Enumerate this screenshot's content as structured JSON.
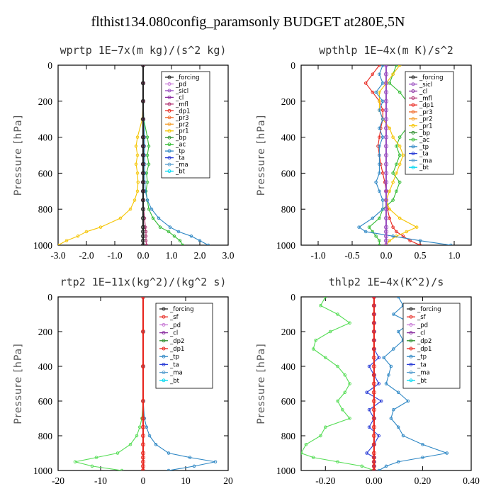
{
  "title": "flthist134.080config_paramsonly  BUDGET at280E,5N",
  "chart_data": [
    {
      "type": "line",
      "title": "wprtp  1E−7x(m kg)/(s^2 kg)",
      "ylabel": "Pressure [hPa]",
      "xlim": [
        -3.0,
        3.0
      ],
      "ylim": [
        1000,
        0
      ],
      "xticks": [
        -3.0,
        -2.0,
        -1.0,
        0.0,
        1.0,
        2.0,
        3.0
      ],
      "xtick_labels": [
        "-3.0",
        "-2.0",
        "-1.0",
        "0.0",
        "1.0",
        "2.0",
        "3.0"
      ],
      "yticks": [
        0,
        200,
        400,
        600,
        800,
        1000
      ],
      "ytick_labels": [
        "0",
        "200",
        "400",
        "600",
        "800",
        "1000"
      ],
      "pressure": [
        0,
        100,
        200,
        300,
        400,
        450,
        500,
        550,
        600,
        650,
        700,
        750,
        800,
        850,
        900,
        925,
        950,
        975,
        1000
      ],
      "legend": [
        "_forcing",
        "_pd",
        "_sicl",
        "_cl",
        "_mfl",
        "_dp1",
        "_pr3",
        "_pr2",
        "_pr1",
        "_bp",
        "_ac",
        "_tp",
        "_ta",
        "_ma",
        "_bt"
      ],
      "series": [
        {
          "name": "_pr1",
          "color": "#f5c400",
          "values": [
            0,
            0,
            0,
            -0.03,
            -0.2,
            -0.25,
            -0.2,
            -0.25,
            -0.2,
            -0.18,
            -0.2,
            -0.3,
            -0.45,
            -0.8,
            -1.5,
            -2.0,
            -2.3,
            -2.7,
            -3.0
          ]
        },
        {
          "name": "_ac",
          "color": "#33bb33",
          "values": [
            0,
            0,
            0,
            0.02,
            0.15,
            0.2,
            0.15,
            0.2,
            0.12,
            0.15,
            0.1,
            0.15,
            0.2,
            0.35,
            0.6,
            0.9,
            1.1,
            1.3,
            1.4
          ]
        },
        {
          "name": "_tp",
          "color": "#2c86c4",
          "values": [
            0,
            0,
            0,
            0.02,
            0.05,
            0.05,
            0.05,
            0.06,
            0.05,
            0.06,
            0.08,
            0.15,
            0.3,
            0.55,
            0.95,
            1.25,
            1.7,
            2.0,
            2.3
          ]
        },
        {
          "name": "_cl",
          "color": "#b03070",
          "values": [
            0,
            0,
            0,
            0,
            0,
            0,
            0,
            0,
            0,
            0,
            0,
            0,
            0.02,
            0.05,
            0.08,
            0.1,
            0.1,
            0.1,
            0.12
          ]
        },
        {
          "name": "_forcing",
          "color": "#222222",
          "values": [
            0,
            0,
            0,
            0,
            0,
            0,
            0,
            0,
            0,
            0,
            0,
            0,
            0,
            0,
            0,
            0,
            0,
            0,
            0
          ]
        }
      ]
    },
    {
      "type": "line",
      "title": "wpthlp  1E−4x(m K)/s^2",
      "ylabel": "Pressure [hPa]",
      "xlim": [
        -1.25,
        1.25
      ],
      "ylim": [
        1000,
        0
      ],
      "xticks": [
        -1.0,
        -0.5,
        0.0,
        0.5,
        1.0
      ],
      "xtick_labels": [
        "-1.0",
        "-0.5",
        "0.0",
        "0.5",
        "1.0"
      ],
      "yticks": [
        0,
        200,
        400,
        600,
        800,
        1000
      ],
      "ytick_labels": [
        "0",
        "200",
        "400",
        "600",
        "800",
        "1000"
      ],
      "pressure": [
        0,
        50,
        100,
        150,
        200,
        250,
        300,
        350,
        400,
        450,
        500,
        550,
        600,
        650,
        700,
        750,
        800,
        850,
        900,
        925,
        950,
        975,
        1000
      ],
      "legend": [
        "_forcing",
        "_sicl",
        "_cl",
        "_mfl",
        "_dp1",
        "_pr3",
        "_pr2",
        "_pr1",
        "_bp",
        "_ac",
        "_tp",
        "_ta",
        "_ma",
        "_bt"
      ],
      "series": [
        {
          "name": "_dp1",
          "color": "#e8261e",
          "values": [
            -0.1,
            -0.2,
            -0.3,
            -0.2,
            -0.1,
            -0.05,
            -0.05,
            -0.08,
            -0.1,
            -0.12,
            -0.1,
            -0.08,
            -0.05,
            -0.02,
            0,
            0,
            0.02,
            0.05,
            0.1,
            0.15,
            0.25,
            0.35,
            0.5
          ]
        },
        {
          "name": "_ac",
          "color": "#33bb33",
          "values": [
            0.15,
            0.1,
            0.05,
            0.2,
            0.3,
            0.35,
            0.4,
            0.3,
            0.2,
            0.15,
            0.2,
            0.15,
            0.1,
            0.2,
            0.15,
            0.1,
            -0.05,
            -0.1,
            -0.25,
            -0.2,
            -0.15,
            -0.1,
            -0.1
          ]
        },
        {
          "name": "_pr1",
          "color": "#f5c400",
          "values": [
            0.2,
            0.1,
            0.0,
            -0.1,
            -0.1,
            -0.1,
            -0.05,
            0.05,
            0.1,
            0.2,
            0.25,
            0.2,
            0.15,
            0.1,
            0.05,
            0.0,
            0.05,
            0.2,
            0.45,
            0.3,
            0.15,
            0.05,
            0.0
          ]
        },
        {
          "name": "_tp",
          "color": "#2c86c4",
          "values": [
            -0.05,
            -0.1,
            -0.05,
            -0.15,
            -0.05,
            -0.1,
            -0.05,
            -0.1,
            -0.05,
            -0.1,
            -0.1,
            -0.1,
            -0.1,
            -0.15,
            -0.1,
            -0.05,
            -0.05,
            -0.2,
            -0.4,
            -0.3,
            0.1,
            0.5,
            0.95
          ]
        },
        {
          "name": "_forcing",
          "color": "#9a4fc0",
          "values": [
            0,
            0,
            0,
            0,
            0,
            0,
            0,
            0,
            0,
            0,
            0,
            0,
            0,
            0,
            0,
            0,
            0,
            0,
            0,
            0,
            0,
            0,
            0
          ]
        }
      ]
    },
    {
      "type": "line",
      "title": "rtp2  1E−11x(kg^2)/(kg^2 s)",
      "ylabel": "Pressure [hPa]",
      "xlim": [
        -20,
        20
      ],
      "ylim": [
        1000,
        0
      ],
      "xticks": [
        -20,
        -10,
        0,
        10,
        20
      ],
      "xtick_labels": [
        "-20",
        "-10",
        "0",
        "10",
        "20"
      ],
      "yticks": [
        0,
        200,
        400,
        600,
        800,
        1000
      ],
      "ytick_labels": [
        "0",
        "200",
        "400",
        "600",
        "800",
        "1000"
      ],
      "pressure": [
        0,
        200,
        400,
        600,
        700,
        750,
        800,
        850,
        900,
        925,
        950,
        975,
        1000
      ],
      "legend": [
        "_forcing",
        "_sf",
        "_pd",
        "_cl",
        "_dp2",
        "_dp1",
        "_tp",
        "_ta",
        "_ma",
        "_bt"
      ],
      "series": [
        {
          "name": "_dp1",
          "color": "#55dd55",
          "values": [
            0,
            0,
            0,
            0,
            -0.3,
            -0.8,
            -1.5,
            -3,
            -6,
            -11,
            -16,
            -12,
            -5
          ]
        },
        {
          "name": "_tp",
          "color": "#2c86c4",
          "values": [
            0,
            0,
            0,
            0,
            0.3,
            0.8,
            1.5,
            3,
            6,
            11,
            17,
            12,
            6
          ]
        },
        {
          "name": "_forcing",
          "color": "#e8261e",
          "values": [
            0,
            0,
            0,
            0,
            0,
            0,
            0,
            0,
            0,
            0,
            0,
            0,
            0
          ]
        }
      ]
    },
    {
      "type": "line",
      "title": "thlp2  1E−4x(K^2)/s",
      "ylabel": "Pressure [hPa]",
      "xlim": [
        -0.3,
        0.4
      ],
      "ylim": [
        1000,
        0
      ],
      "xticks": [
        -0.2,
        0.0,
        0.2,
        0.4
      ],
      "xtick_labels": [
        "-0.20",
        "0.00",
        "0.20",
        "0.40"
      ],
      "yticks": [
        0,
        200,
        400,
        600,
        800,
        1000
      ],
      "ytick_labels": [
        "0",
        "200",
        "400",
        "600",
        "800",
        "1000"
      ],
      "pressure": [
        0,
        50,
        100,
        150,
        200,
        250,
        300,
        350,
        400,
        450,
        500,
        550,
        600,
        650,
        700,
        750,
        800,
        850,
        900,
        925,
        950,
        975,
        1000
      ],
      "legend": [
        "_forcing",
        "_sf",
        "_pd",
        "_cl",
        "_dp2",
        "_dp1",
        "_tp",
        "_ta",
        "_ma",
        "_bt"
      ],
      "series": [
        {
          "name": "_dp1",
          "color": "#55dd55",
          "values": [
            -0.2,
            -0.22,
            -0.15,
            -0.1,
            -0.18,
            -0.24,
            -0.25,
            -0.2,
            -0.15,
            -0.12,
            -0.1,
            -0.12,
            -0.15,
            -0.13,
            -0.1,
            -0.2,
            -0.22,
            -0.28,
            -0.3,
            -0.25,
            -0.15,
            -0.05,
            0.0
          ]
        },
        {
          "name": "_tp",
          "color": "#2c86c4",
          "values": [
            0.1,
            0.12,
            0.08,
            0.15,
            0.1,
            0.12,
            0.08,
            0.04,
            0.07,
            0.06,
            0.05,
            0.1,
            0.14,
            0.08,
            0.07,
            0.1,
            0.12,
            0.2,
            0.3,
            0.2,
            0.1,
            0.05,
            0.02
          ]
        },
        {
          "name": "_ta",
          "color": "#2a3dd6",
          "values": [
            0,
            0,
            0,
            0,
            0,
            0,
            0,
            0.02,
            -0.02,
            0.0,
            0.02,
            -0.03,
            0.03,
            -0.02,
            0.0,
            -0.02,
            0.02,
            0.0,
            -0.03,
            0.0,
            0,
            0,
            0
          ]
        },
        {
          "name": "_forcing",
          "color": "#e8261e",
          "values": [
            0,
            0,
            0,
            0,
            0,
            0,
            0,
            0,
            0,
            0,
            0,
            0,
            0,
            0,
            0,
            0,
            0,
            0,
            0,
            0,
            0,
            0,
            0
          ]
        }
      ]
    }
  ]
}
